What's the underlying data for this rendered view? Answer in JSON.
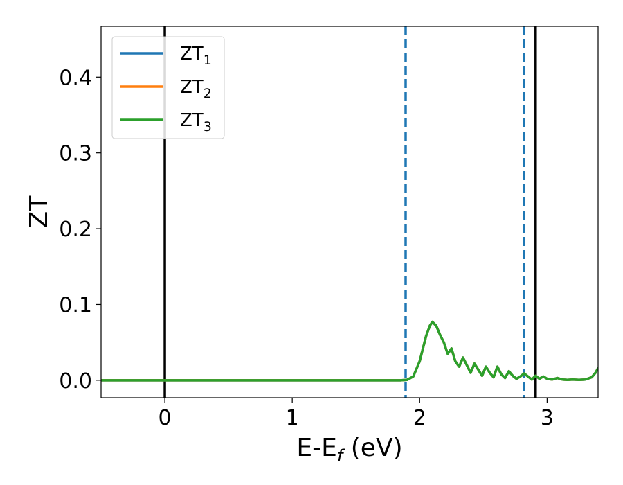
{
  "chart_data": {
    "type": "line",
    "xlabel": "E-E",
    "xlabel_sub": "f",
    "xlabel_unit": " (eV)",
    "ylabel": "ZT",
    "xlim": [
      -0.5,
      3.4
    ],
    "ylim": [
      -0.023,
      0.467
    ],
    "xticks": [
      0,
      1,
      2,
      3
    ],
    "xtick_labels": [
      "0",
      "1",
      "2",
      "3"
    ],
    "yticks": [
      0.0,
      0.1,
      0.2,
      0.3,
      0.4
    ],
    "ytick_labels": [
      "0.0",
      "0.1",
      "0.2",
      "0.3",
      "0.4"
    ],
    "grid": false,
    "legend_position": "top-left",
    "vlines": [
      {
        "x": 0.0,
        "style": "solid",
        "color": "#000000"
      },
      {
        "x": 1.89,
        "style": "dashed",
        "color": "#1f77b4"
      },
      {
        "x": 2.82,
        "style": "dashed",
        "color": "#1f77b4"
      },
      {
        "x": 2.91,
        "style": "solid",
        "color": "#000000"
      }
    ],
    "series": [
      {
        "name": "ZT",
        "name_sub": "1",
        "color": "#1f77b4",
        "x": [
          -0.5,
          1.8,
          1.85,
          1.9,
          1.95,
          2.0,
          2.05,
          2.08,
          2.1,
          2.13,
          2.16,
          2.19,
          2.22,
          2.25,
          2.28,
          2.31,
          2.34,
          2.37,
          2.4,
          2.43,
          2.46,
          2.49,
          2.52,
          2.55,
          2.58,
          2.61,
          2.64,
          2.67,
          2.7,
          2.73,
          2.76,
          2.79,
          2.82,
          2.85,
          2.88,
          2.91,
          2.94,
          2.97,
          3.0,
          3.04,
          3.08,
          3.12,
          3.16,
          3.2,
          3.25,
          3.3,
          3.35,
          3.38,
          3.4
        ],
        "y": [
          0.0,
          0.0,
          0.0,
          0.0005,
          0.005,
          0.025,
          0.058,
          0.072,
          0.077,
          0.072,
          0.06,
          0.05,
          0.035,
          0.042,
          0.025,
          0.018,
          0.03,
          0.02,
          0.01,
          0.022,
          0.014,
          0.006,
          0.018,
          0.01,
          0.004,
          0.018,
          0.008,
          0.003,
          0.012,
          0.006,
          0.002,
          0.005,
          0.009,
          0.005,
          0.001,
          0.006,
          0.002,
          0.005,
          0.002,
          0.001,
          0.003,
          0.001,
          0.0005,
          0.001,
          0.0005,
          0.001,
          0.004,
          0.01,
          0.016
        ]
      },
      {
        "name": "ZT",
        "name_sub": "2",
        "color": "#ff7f0e",
        "x": [
          -0.5,
          1.8,
          1.85,
          1.9,
          1.95,
          2.0,
          2.05,
          2.08,
          2.1,
          2.13,
          2.16,
          2.19,
          2.22,
          2.25,
          2.28,
          2.31,
          2.34,
          2.37,
          2.4,
          2.43,
          2.46,
          2.49,
          2.52,
          2.55,
          2.58,
          2.61,
          2.64,
          2.67,
          2.7,
          2.73,
          2.76,
          2.79,
          2.82,
          2.85,
          2.88,
          2.91,
          2.94,
          2.97,
          3.0,
          3.04,
          3.08,
          3.12,
          3.16,
          3.2,
          3.25,
          3.3,
          3.35,
          3.38,
          3.4
        ],
        "y": [
          0.0,
          0.0,
          0.0,
          0.0005,
          0.005,
          0.025,
          0.058,
          0.072,
          0.077,
          0.072,
          0.06,
          0.05,
          0.035,
          0.042,
          0.025,
          0.018,
          0.03,
          0.02,
          0.01,
          0.022,
          0.014,
          0.006,
          0.018,
          0.01,
          0.004,
          0.018,
          0.008,
          0.003,
          0.012,
          0.006,
          0.002,
          0.005,
          0.009,
          0.005,
          0.001,
          0.006,
          0.002,
          0.005,
          0.002,
          0.001,
          0.003,
          0.001,
          0.0005,
          0.001,
          0.0005,
          0.001,
          0.004,
          0.01,
          0.016
        ]
      },
      {
        "name": "ZT",
        "name_sub": "3",
        "color": "#2ca02c",
        "x": [
          -0.5,
          1.8,
          1.85,
          1.9,
          1.95,
          2.0,
          2.05,
          2.08,
          2.1,
          2.13,
          2.16,
          2.19,
          2.22,
          2.25,
          2.28,
          2.31,
          2.34,
          2.37,
          2.4,
          2.43,
          2.46,
          2.49,
          2.52,
          2.55,
          2.58,
          2.61,
          2.64,
          2.67,
          2.7,
          2.73,
          2.76,
          2.79,
          2.82,
          2.85,
          2.88,
          2.91,
          2.94,
          2.97,
          3.0,
          3.04,
          3.08,
          3.12,
          3.16,
          3.2,
          3.25,
          3.3,
          3.35,
          3.38,
          3.4
        ],
        "y": [
          0.0,
          0.0,
          0.0,
          0.0005,
          0.005,
          0.025,
          0.058,
          0.072,
          0.077,
          0.072,
          0.06,
          0.05,
          0.035,
          0.042,
          0.025,
          0.018,
          0.03,
          0.02,
          0.01,
          0.022,
          0.014,
          0.006,
          0.018,
          0.01,
          0.004,
          0.018,
          0.008,
          0.003,
          0.012,
          0.006,
          0.002,
          0.005,
          0.009,
          0.005,
          0.001,
          0.006,
          0.002,
          0.005,
          0.002,
          0.001,
          0.003,
          0.001,
          0.0005,
          0.001,
          0.0005,
          0.001,
          0.004,
          0.01,
          0.016
        ]
      }
    ]
  }
}
